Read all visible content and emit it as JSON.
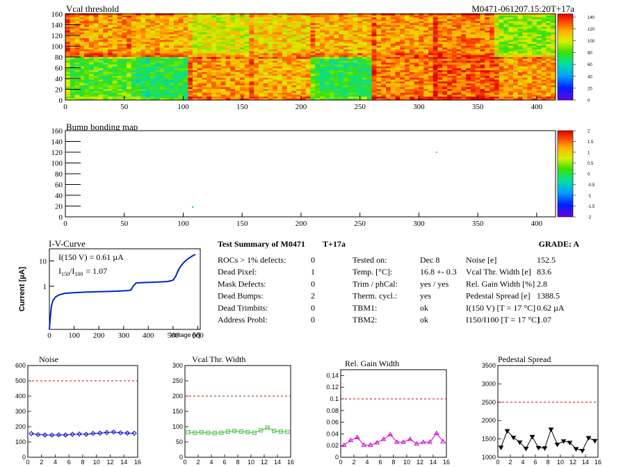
{
  "page": {
    "top_title": "Vcal threshold",
    "top_right_title": "M0471-061207.15:20T+17a",
    "bump_title": "Bump bonding map",
    "iv_title": "I-V-Curve"
  },
  "map_axes": {
    "x_ticks": [
      "0",
      "50",
      "100",
      "150",
      "200",
      "250",
      "300",
      "350",
      "400"
    ],
    "x_tick_values": [
      0,
      50,
      100,
      150,
      200,
      250,
      300,
      350,
      400
    ],
    "x_range": [
      0,
      416
    ],
    "y_ticks": [
      "0",
      "20",
      "40",
      "60",
      "80",
      "100",
      "120",
      "140",
      "160"
    ],
    "y_tick_values": [
      0,
      20,
      40,
      60,
      80,
      100,
      120,
      140,
      160
    ],
    "y_range": [
      0,
      160
    ]
  },
  "vcal_palette": {
    "scale_labels": [
      "140",
      "120",
      "100",
      "80",
      "60",
      "40",
      "20",
      "0"
    ],
    "scale_values": [
      140,
      120,
      100,
      80,
      60,
      40,
      20,
      0
    ],
    "range": [
      0,
      145
    ]
  },
  "bump_palette": {
    "scale_labels": [
      "2",
      "1.5",
      "1",
      "0.5",
      "0",
      "-0.5",
      "-1",
      "-1.5",
      "-2"
    ],
    "scale_values": [
      2,
      1.5,
      1,
      0.5,
      0,
      -0.5,
      -1,
      -1.5,
      -2
    ],
    "range": [
      -2,
      2
    ]
  },
  "vcal_map": {
    "roc_cols": 8,
    "roc_rows": 2,
    "roc_width": 52,
    "roc_height": 80,
    "roc_mean_bottom": [
      80,
      72,
      118,
      114,
      72,
      122,
      130,
      118
    ],
    "roc_mean_top": [
      118,
      115,
      100,
      108,
      112,
      118,
      122,
      90
    ],
    "noise_amplitude": 16
  },
  "bump_map": {
    "points": [
      {
        "x": 108,
        "y": 18,
        "value": -0.6
      },
      {
        "x": 315,
        "y": 120,
        "value": 0.3
      }
    ]
  },
  "iv": {
    "annotation_1": "I(150 V) = 0.61 µA",
    "annotation_2_prefix": "I",
    "annotation_2_sub1": "150",
    "annotation_2_slash": "/I",
    "annotation_2_sub2": "100",
    "annotation_2_value": "=  1.07",
    "ylabel": "Current [µA]",
    "xlabel": "Voltage [V]",
    "x_ticks": [
      "0",
      "100",
      "200",
      "300",
      "400",
      "500",
      "600"
    ],
    "x_tick_values": [
      0,
      100,
      200,
      300,
      400,
      500,
      600
    ],
    "x_range": [
      0,
      610
    ],
    "y_ticks": [
      "1",
      "10"
    ],
    "y_tick_values": [
      1,
      10
    ],
    "y_range_log": [
      0.02,
      30
    ],
    "points": [
      [
        0,
        0.02
      ],
      [
        3,
        0.05
      ],
      [
        8,
        0.16
      ],
      [
        15,
        0.28
      ],
      [
        25,
        0.38
      ],
      [
        40,
        0.46
      ],
      [
        60,
        0.52
      ],
      [
        100,
        0.56
      ],
      [
        150,
        0.59
      ],
      [
        200,
        0.61
      ],
      [
        250,
        0.63
      ],
      [
        300,
        0.66
      ],
      [
        320,
        0.68
      ],
      [
        330,
        0.72
      ],
      [
        340,
        1.05
      ],
      [
        350,
        1.35
      ],
      [
        380,
        1.4
      ],
      [
        420,
        1.45
      ],
      [
        460,
        1.5
      ],
      [
        480,
        1.55
      ],
      [
        500,
        1.75
      ],
      [
        510,
        2.4
      ],
      [
        520,
        4.0
      ],
      [
        530,
        6.0
      ],
      [
        545,
        9.0
      ],
      [
        560,
        12.0
      ],
      [
        575,
        15.0
      ],
      [
        590,
        18.0
      ]
    ]
  },
  "summary": {
    "title": "Test Summary of M0471",
    "tag": "T+17a",
    "grade_label": "GRADE:  A",
    "col1": [
      {
        "label": "ROCs > 1% defects:",
        "value": "0"
      },
      {
        "label": "Dead Pixel:",
        "value": "1"
      },
      {
        "label": "Mask Defects:",
        "value": "0"
      },
      {
        "label": "Dead Bumps:",
        "value": "2"
      },
      {
        "label": "Dead Trimbits:",
        "value": "0"
      },
      {
        "label": "Address Probl:",
        "value": "0"
      }
    ],
    "col2": [
      {
        "label": "Tested on:",
        "value": "Dec 8"
      },
      {
        "label": "Temp. [°C]:",
        "value": "16.8 +- 0.3"
      },
      {
        "label": "Trim / phCal:",
        "value": "yes / yes"
      },
      {
        "label": "Therm. cycl.:",
        "value": "yes"
      },
      {
        "label": "TBM1:",
        "value": "ok"
      },
      {
        "label": "TBM2:",
        "value": "ok"
      }
    ],
    "col3": [
      {
        "label": "Noise [e]",
        "value": "152.5"
      },
      {
        "label": "Vcal Thr. Width [e]",
        "value": "83.6"
      },
      {
        "label": "Rel. Gain Width [%]",
        "value": "2.8"
      },
      {
        "label": "Pedestal Spread [e]",
        "value": "1388.5"
      },
      {
        "label": "I(150 V) [T = 17 °C]",
        "value": "0.62 µA"
      },
      {
        "label": "I150/I100  [T = 17 °C]",
        "value": "1.07"
      }
    ]
  },
  "chart_data": [
    {
      "type": "line",
      "title": "Noise",
      "x": [
        0,
        1,
        2,
        3,
        4,
        5,
        6,
        7,
        8,
        9,
        10,
        11,
        12,
        13,
        14,
        15
      ],
      "values": [
        155,
        148,
        146,
        145,
        147,
        146,
        150,
        152,
        150,
        156,
        158,
        162,
        165,
        160,
        158,
        157
      ],
      "limit": 500,
      "xlim": [
        0,
        16
      ],
      "ylim": [
        0,
        600
      ],
      "y_ticks": [
        "0",
        "100",
        "200",
        "300",
        "400",
        "500",
        "600"
      ],
      "y_tick_values": [
        0,
        100,
        200,
        300,
        400,
        500,
        600
      ],
      "x_ticks": [
        "0",
        "2",
        "4",
        "6",
        "8",
        "10",
        "12",
        "14",
        "16"
      ],
      "x_tick_values": [
        0,
        2,
        4,
        6,
        8,
        10,
        12,
        14,
        16
      ],
      "color": "#0000cc",
      "marker": "diamond"
    },
    {
      "type": "line",
      "title": "Vcal Thr. Width",
      "x": [
        0,
        1,
        2,
        3,
        4,
        5,
        6,
        7,
        8,
        9,
        10,
        11,
        12,
        13,
        14,
        15
      ],
      "values": [
        82,
        80,
        82,
        80,
        79,
        80,
        84,
        86,
        84,
        82,
        80,
        88,
        97,
        86,
        84,
        83
      ],
      "limit": 200,
      "xlim": [
        0,
        16
      ],
      "ylim": [
        0,
        300
      ],
      "y_ticks": [
        "0",
        "50",
        "100",
        "150",
        "200",
        "250",
        "300"
      ],
      "y_tick_values": [
        0,
        50,
        100,
        150,
        200,
        250,
        300
      ],
      "x_ticks": [
        "0",
        "2",
        "4",
        "6",
        "8",
        "10",
        "12",
        "14",
        "16"
      ],
      "x_tick_values": [
        0,
        2,
        4,
        6,
        8,
        10,
        12,
        14,
        16
      ],
      "color": "#44bb44",
      "marker": "square"
    },
    {
      "type": "line",
      "title": "Rel. Gain Width",
      "x": [
        0,
        1,
        2,
        3,
        4,
        5,
        6,
        7,
        8,
        9,
        10,
        11,
        12,
        13,
        14,
        15
      ],
      "values": [
        0.021,
        0.029,
        0.034,
        0.021,
        0.021,
        0.025,
        0.031,
        0.039,
        0.026,
        0.026,
        0.031,
        0.023,
        0.026,
        0.026,
        0.041,
        0.027
      ],
      "limit": 0.1,
      "xlim": [
        0,
        16
      ],
      "ylim": [
        0,
        0.15
      ],
      "y_ticks": [
        "0",
        "0.02",
        "0.04",
        "0.06",
        "0.08",
        "0.1",
        "0.12",
        "0.14"
      ],
      "y_tick_values": [
        0,
        0.02,
        0.04,
        0.06,
        0.08,
        0.1,
        0.12,
        0.14
      ],
      "x_ticks": [
        "0",
        "2",
        "4",
        "6",
        "8",
        "10",
        "12",
        "14",
        "16"
      ],
      "x_tick_values": [
        0,
        2,
        4,
        6,
        8,
        10,
        12,
        14,
        16
      ],
      "color": "#cc00cc",
      "marker": "triangle"
    },
    {
      "type": "line",
      "title": "Pedestal Spread",
      "x": [
        0,
        1,
        2,
        3,
        4,
        5,
        6,
        7,
        8,
        9,
        10,
        11,
        12,
        13,
        14,
        15
      ],
      "values": [
        1270,
        1720,
        1540,
        1410,
        1240,
        1560,
        1260,
        1250,
        1760,
        1350,
        1440,
        1400,
        1230,
        1180,
        1530,
        1450
      ],
      "limit": 2500,
      "xlim": [
        0,
        16
      ],
      "ylim": [
        1000,
        3500
      ],
      "y_ticks": [
        "1000",
        "1500",
        "2000",
        "2500",
        "3000",
        "3500"
      ],
      "y_tick_values": [
        1000,
        1500,
        2000,
        2500,
        3000,
        3500
      ],
      "x_ticks": [
        "0",
        "2",
        "4",
        "6",
        "8",
        "10",
        "12",
        "14",
        "16"
      ],
      "x_tick_values": [
        0,
        2,
        4,
        6,
        8,
        10,
        12,
        14,
        16
      ],
      "color": "#000000",
      "marker": "triangle-down"
    }
  ]
}
